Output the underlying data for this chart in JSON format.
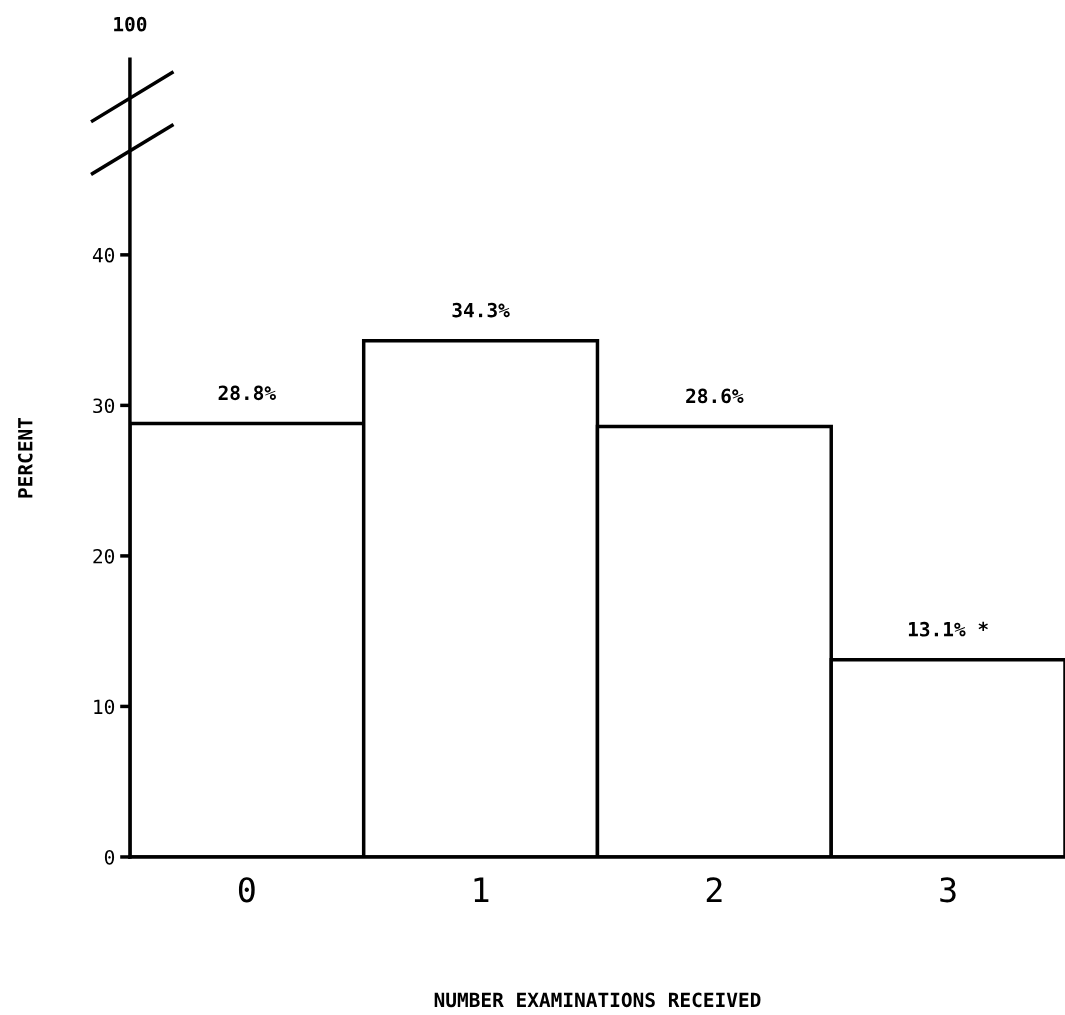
{
  "chart_data": {
    "type": "bar",
    "xlabel": "NUMBER EXAMINATIONS RECEIVED",
    "ylabel": "PERCENT",
    "categories": [
      "0",
      "1",
      "2",
      "3"
    ],
    "values": [
      28.8,
      34.3,
      28.6,
      13.1
    ],
    "value_labels": [
      "28.8%",
      "34.3%",
      "28.6%",
      "13.1% *"
    ],
    "color": "#ffffff",
    "ylim": [
      0,
      53
    ],
    "yticks": [
      0,
      10,
      20,
      30,
      40
    ],
    "annotations": [
      "100"
    ],
    "grid": false
  }
}
